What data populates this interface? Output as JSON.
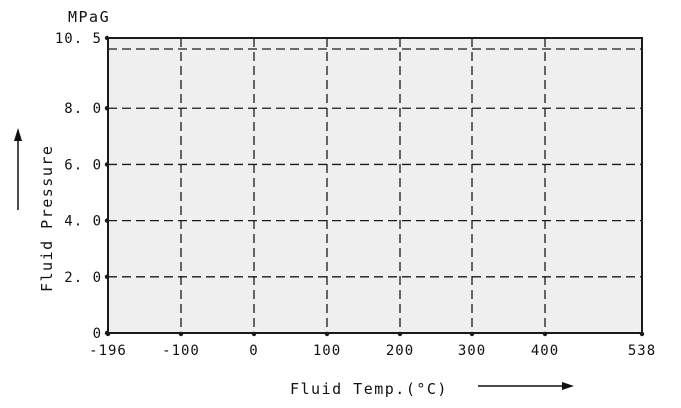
{
  "chart_data": {
    "type": "area",
    "title": "",
    "xlabel": "Fluid Temp.(°C)",
    "ylabel": "Fluid Pressure",
    "y_unit": "MPaG",
    "x_ticks": [
      -196,
      -100,
      0,
      100,
      200,
      300,
      400,
      538
    ],
    "x_tick_labels": [
      "-196",
      "-100",
      "0",
      "100",
      "200",
      "300",
      "400",
      "538"
    ],
    "y_ticks": [
      0,
      2,
      4,
      6,
      8,
      10.5
    ],
    "y_tick_labels": [
      "0",
      "2. 0",
      "4. 0",
      "6. 0",
      "8. 0",
      "10. 5"
    ],
    "xlim": [
      -196,
      538
    ],
    "ylim": [
      0,
      10.5
    ],
    "region": {
      "x": [
        -196,
        538
      ],
      "y": [
        0,
        10.5
      ]
    },
    "grid": true,
    "fill_color": "#efefef",
    "line_color": "#1a1a1a"
  }
}
